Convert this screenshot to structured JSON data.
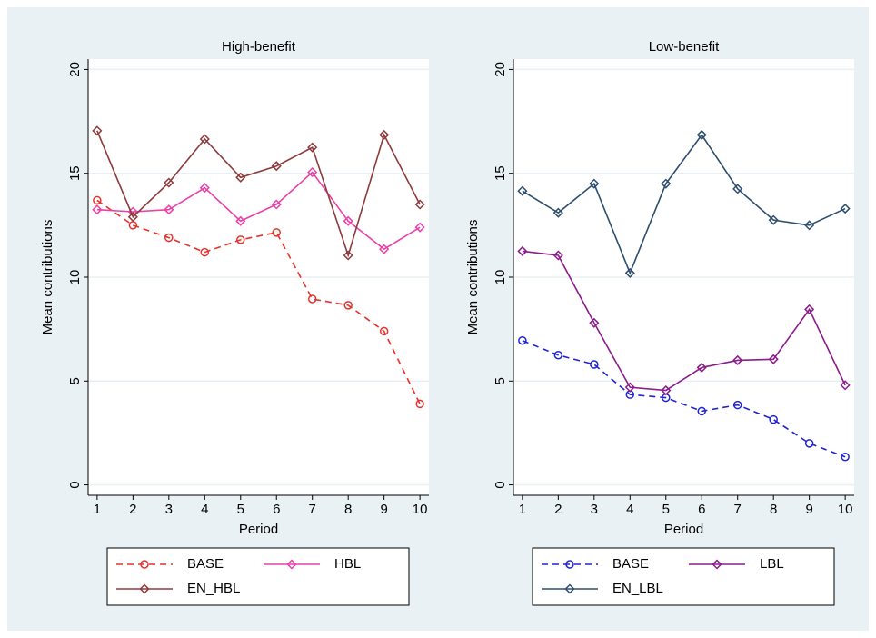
{
  "chart_data": [
    {
      "type": "line",
      "title": "High-benefit",
      "x_label": "Period",
      "y_label": "Mean contributions",
      "x": [
        1,
        2,
        3,
        4,
        5,
        6,
        7,
        8,
        9,
        10
      ],
      "xlim": [
        0.75,
        10.25
      ],
      "xticks": [
        1,
        2,
        3,
        4,
        5,
        6,
        7,
        8,
        9,
        10
      ],
      "ylim": [
        -0.5,
        20.5
      ],
      "yticks": [
        0,
        5,
        10,
        15,
        20
      ],
      "grid": true,
      "legend": "bottom",
      "series": [
        {
          "name": "BASE",
          "color": "#e8322c",
          "dash": true,
          "marker": "circle",
          "values": [
            13.7,
            12.5,
            11.9,
            11.2,
            11.8,
            12.15,
            8.95,
            8.65,
            7.4,
            3.9
          ]
        },
        {
          "name": "HBL",
          "color": "#ec3fa8",
          "dash": false,
          "marker": "diamond",
          "values": [
            13.25,
            13.15,
            13.25,
            14.3,
            12.7,
            13.5,
            15.05,
            12.7,
            11.35,
            12.4
          ]
        },
        {
          "name": "EN_HBL",
          "color": "#8e3b3b",
          "dash": false,
          "marker": "diamond",
          "values": [
            17.05,
            12.9,
            14.55,
            16.65,
            14.8,
            15.35,
            16.25,
            11.05,
            16.85,
            13.5
          ]
        }
      ]
    },
    {
      "type": "line",
      "title": "Low-benefit",
      "x_label": "Period",
      "y_label": "Mean contributions",
      "x": [
        1,
        2,
        3,
        4,
        5,
        6,
        7,
        8,
        9,
        10
      ],
      "xlim": [
        0.75,
        10.25
      ],
      "xticks": [
        1,
        2,
        3,
        4,
        5,
        6,
        7,
        8,
        9,
        10
      ],
      "ylim": [
        -0.5,
        20.5
      ],
      "yticks": [
        0,
        5,
        10,
        15,
        20
      ],
      "grid": true,
      "legend": "bottom",
      "series": [
        {
          "name": "BASE",
          "color": "#1f24d6",
          "dash": true,
          "marker": "circle",
          "values": [
            6.95,
            6.25,
            5.8,
            4.35,
            4.2,
            3.55,
            3.85,
            3.15,
            2.0,
            1.35
          ]
        },
        {
          "name": "LBL",
          "color": "#8b1c8b",
          "dash": false,
          "marker": "diamond",
          "values": [
            11.25,
            11.05,
            7.8,
            4.7,
            4.55,
            5.65,
            6.0,
            6.05,
            8.45,
            4.8
          ]
        },
        {
          "name": "EN_LBL",
          "color": "#2e4e6e",
          "dash": false,
          "marker": "diamond",
          "values": [
            14.15,
            13.1,
            14.5,
            10.2,
            14.5,
            16.85,
            14.25,
            12.75,
            12.5,
            13.3
          ]
        }
      ]
    }
  ]
}
